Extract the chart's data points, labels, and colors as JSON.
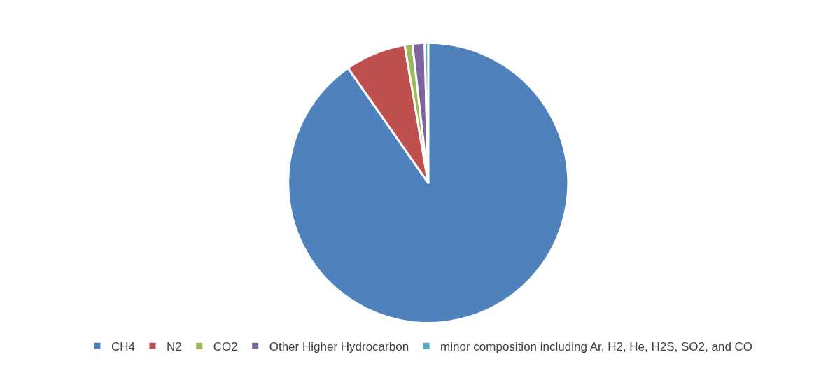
{
  "chart_data": {
    "type": "pie",
    "categories": [
      "CH4",
      "N2",
      "CO2",
      "Other Higher Hydrocarbon",
      "minor composition including Ar, H2, He, H2S, SO2, and CO"
    ],
    "values": [
      90.3,
      7.0,
      0.9,
      1.4,
      0.4
    ],
    "colors": [
      "#4f81bd",
      "#c0504d",
      "#9bbb59",
      "#8064a2",
      "#4bacc6"
    ],
    "legend": "bottom"
  }
}
